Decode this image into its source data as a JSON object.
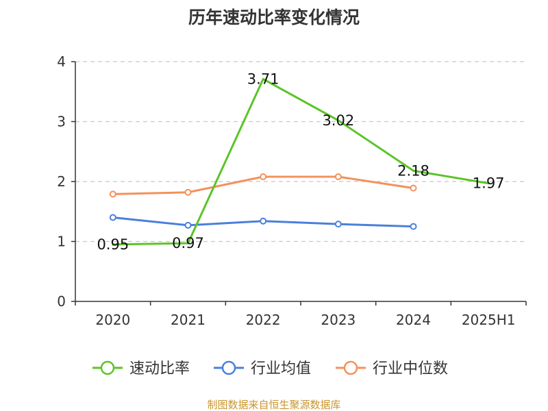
{
  "chart_data": {
    "type": "line",
    "title": "历年速动比率变化情况",
    "categories": [
      "2020",
      "2021",
      "2022",
      "2023",
      "2024",
      "2025H1"
    ],
    "ylim": [
      0,
      4
    ],
    "yticks": [
      "0",
      "1",
      "2",
      "3",
      "4"
    ],
    "grid": true,
    "legend_position": "bottom",
    "series": [
      {
        "name": "速动比率",
        "color": "#5cc427",
        "values": [
          0.95,
          0.97,
          3.71,
          3.02,
          2.18,
          1.97
        ],
        "labels": [
          "0.95",
          "0.97",
          "3.71",
          "3.02",
          "2.18",
          "1.97"
        ]
      },
      {
        "name": "行业均值",
        "color": "#4a7fdc",
        "values": [
          1.4,
          1.27,
          1.34,
          1.29,
          1.25,
          null
        ]
      },
      {
        "name": "行业中位数",
        "color": "#f5905b",
        "values": [
          1.79,
          1.82,
          2.08,
          2.08,
          1.89,
          null
        ]
      }
    ]
  },
  "source": "制图数据来自恒生聚源数据库"
}
